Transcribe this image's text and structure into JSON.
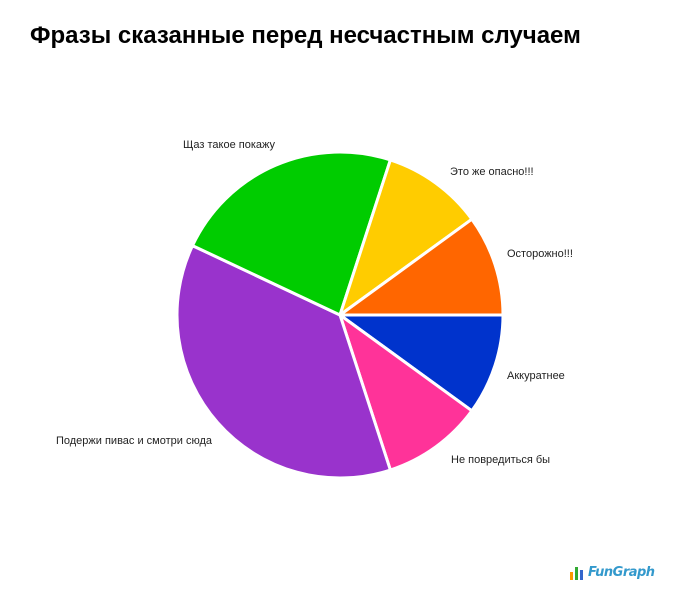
{
  "chart_data": {
    "type": "pie",
    "title": "Фразы сказанные перед несчастным случаем",
    "start_angle_deg": 0,
    "direction": "clockwise",
    "slices": [
      {
        "label": "Аккуратнее",
        "value": 10,
        "color": "#0033cc"
      },
      {
        "label": "Не повредиться бы",
        "value": 10,
        "color": "#ff3399"
      },
      {
        "label": "Подержи пивас и смотри сюда",
        "value": 37,
        "color": "#9933cc"
      },
      {
        "label": "Щаз такое покажу",
        "value": 23,
        "color": "#00cc00"
      },
      {
        "label": "Это же опасно!!!",
        "value": 10,
        "color": "#ffcc00"
      },
      {
        "label": "Осторожно!!!",
        "value": 10,
        "color": "#ff6600"
      }
    ]
  },
  "logo": {
    "text": "FunGraph",
    "bar_colors": [
      "#ff9900",
      "#33aa33",
      "#3366cc"
    ],
    "text_color": "#3399cc"
  }
}
